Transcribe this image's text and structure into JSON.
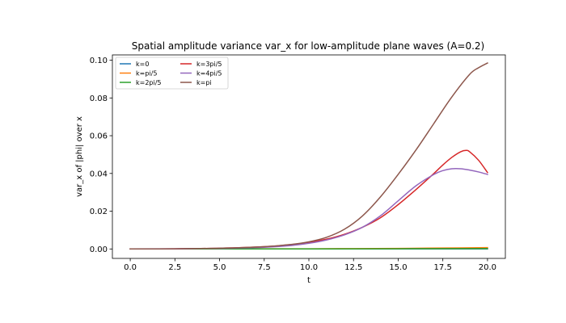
{
  "chart_data": {
    "type": "line",
    "title": "Spatial amplitude variance var_x for low-amplitude plane waves (A=0.2)",
    "xlabel": "t",
    "ylabel": "var_x of |phi| over x",
    "xlim": [
      -1,
      21
    ],
    "ylim": [
      -0.005,
      0.1028
    ],
    "xticks": [
      0.0,
      2.5,
      5.0,
      7.5,
      10.0,
      12.5,
      15.0,
      17.5,
      20.0
    ],
    "xtick_labels": [
      "0.0",
      "2.5",
      "5.0",
      "7.5",
      "10.0",
      "12.5",
      "15.0",
      "17.5",
      "20.0"
    ],
    "yticks": [
      0.0,
      0.02,
      0.04,
      0.06,
      0.08,
      0.1
    ],
    "ytick_labels": [
      "0.00",
      "0.02",
      "0.04",
      "0.06",
      "0.08",
      "0.10"
    ],
    "grid": false,
    "legend": {
      "placement": "top-left",
      "columns": 2
    },
    "series": [
      {
        "name": "k=0",
        "color": "#1f77b4",
        "x": [
          0,
          20
        ],
        "y": [
          0,
          0
        ]
      },
      {
        "name": "k=pi/5",
        "color": "#ff7f0e",
        "x": [
          0,
          5,
          10,
          12.5,
          15,
          17.5,
          20
        ],
        "y": [
          0,
          5e-05,
          0.0001,
          0.0002,
          0.0003,
          0.0005,
          0.0007
        ]
      },
      {
        "name": "k=2pi/5",
        "color": "#2ca02c",
        "x": [
          0,
          5,
          10,
          15,
          20
        ],
        "y": [
          0,
          1e-05,
          5e-05,
          0.0001,
          0.0002
        ]
      },
      {
        "name": "k=3pi/5",
        "color": "#d62728",
        "x": [
          0,
          2.5,
          5,
          7.5,
          9,
          10,
          11,
          12,
          13,
          14,
          15,
          16,
          17,
          17.5,
          18,
          18.5,
          18.8,
          19,
          19.5,
          20
        ],
        "y": [
          0,
          0.0001,
          0.0004,
          0.0012,
          0.0023,
          0.0035,
          0.0052,
          0.0078,
          0.0115,
          0.0165,
          0.0235,
          0.0315,
          0.04,
          0.0445,
          0.0485,
          0.0515,
          0.0522,
          0.0515,
          0.047,
          0.0405
        ]
      },
      {
        "name": "k=4pi/5",
        "color": "#9467bd",
        "x": [
          0,
          2.5,
          5,
          7.5,
          9,
          10,
          11,
          12,
          13,
          14,
          15,
          16,
          17,
          17.5,
          18,
          18.5,
          19,
          19.5,
          20
        ],
        "y": [
          0,
          0.0001,
          0.0003,
          0.0009,
          0.0018,
          0.003,
          0.0048,
          0.0075,
          0.0115,
          0.0175,
          0.0255,
          0.0335,
          0.0395,
          0.0415,
          0.0425,
          0.0425,
          0.0418,
          0.0408,
          0.0395
        ]
      },
      {
        "name": "k=pi",
        "color": "#8c564b",
        "x": [
          0,
          2.5,
          5,
          7.5,
          9,
          10,
          11,
          12,
          13,
          14,
          15,
          16,
          17,
          18,
          19,
          19.5,
          20
        ],
        "y": [
          0,
          0.0001,
          0.0004,
          0.0012,
          0.0024,
          0.0038,
          0.0062,
          0.0105,
          0.0175,
          0.0275,
          0.0395,
          0.0525,
          0.0665,
          0.0805,
          0.0925,
          0.096,
          0.0985
        ]
      }
    ]
  }
}
